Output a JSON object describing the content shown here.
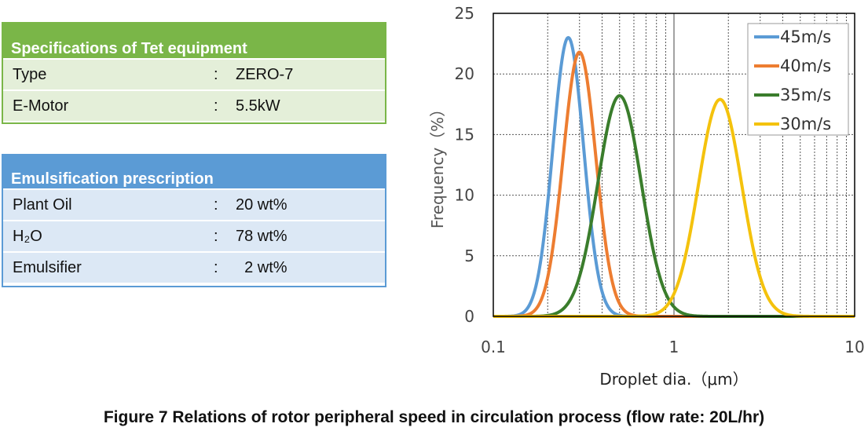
{
  "spec_table": {
    "title": "Specifications of Tet equipment",
    "header_color": "#7ab648",
    "row_color": "#e4efd9",
    "rows": [
      {
        "label": "Type",
        "sep": ":",
        "value": "ZERO-7"
      },
      {
        "label": "E-Motor",
        "sep": ":",
        "value": "5.5kW"
      }
    ]
  },
  "emulsion_table": {
    "title": "Emulsification prescription",
    "header_color": "#5b9bd5",
    "row_color": "#dce8f5",
    "rows": [
      {
        "label": "Plant Oil",
        "sep": ":",
        "value": "20 wt%"
      },
      {
        "label": "H₂O",
        "sep": ":",
        "value": "78 wt%"
      },
      {
        "label": "Emulsifier",
        "sep": ":",
        "value": "  2 wt%"
      }
    ]
  },
  "caption": "Figure 7    Relations of rotor peripheral speed in circulation process (flow rate: 20L/hr)",
  "chart_data": {
    "type": "line",
    "xlabel": "Droplet dia.（μm）",
    "ylabel": "Frequency（%）",
    "xscale": "log",
    "xlim": [
      0.1,
      10
    ],
    "ylim": [
      0,
      25
    ],
    "xticks": [
      "0.1",
      "1",
      "10"
    ],
    "yticks": [
      "0",
      "5",
      "10",
      "15",
      "20",
      "25"
    ],
    "grid": true,
    "legend": "top-right",
    "series": [
      {
        "name": "45m/s",
        "color": "#5b9bd5",
        "peak_x": 0.26,
        "peak_y": 23.0,
        "log_width": 0.085
      },
      {
        "name": "40m/s",
        "color": "#ed7d31",
        "peak_x": 0.3,
        "peak_y": 21.8,
        "log_width": 0.09
      },
      {
        "name": "35m/s",
        "color": "#3a7d2c",
        "peak_x": 0.5,
        "peak_y": 18.2,
        "log_width": 0.12
      },
      {
        "name": "30m/s",
        "color": "#f4c20d",
        "peak_x": 1.8,
        "peak_y": 17.9,
        "log_width": 0.12
      }
    ]
  }
}
